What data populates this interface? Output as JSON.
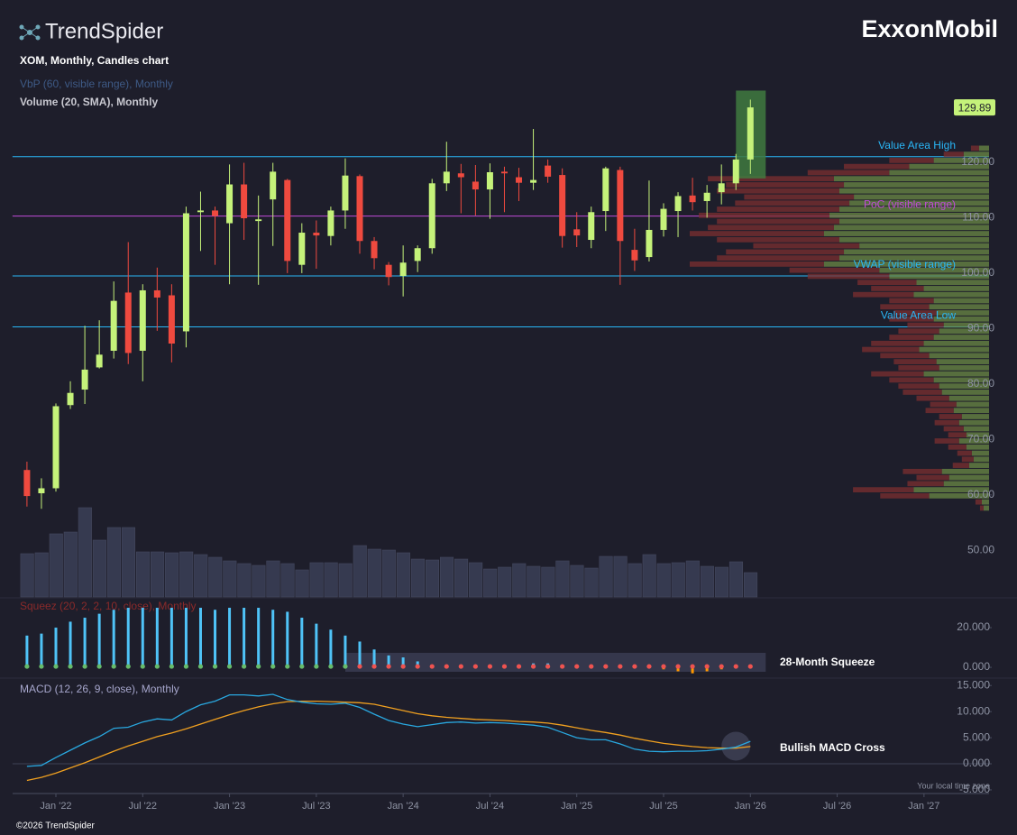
{
  "header": {
    "brand": "TrendSpider",
    "company": "ExxonMobil",
    "footer": "©2026 TrendSpider",
    "timezone": "Your local time zone"
  },
  "chart_data": {
    "type": "candlestick",
    "title": "XOM, Monthly, Candles chart",
    "x": [
      "2021-11",
      "2021-12",
      "2022-01",
      "2022-02",
      "2022-03",
      "2022-04",
      "2022-05",
      "2022-06",
      "2022-07",
      "2022-08",
      "2022-09",
      "2022-10",
      "2022-11",
      "2022-12",
      "2023-01",
      "2023-02",
      "2023-03",
      "2023-04",
      "2023-05",
      "2023-06",
      "2023-07",
      "2023-08",
      "2023-09",
      "2023-10",
      "2023-11",
      "2023-12",
      "2024-01",
      "2024-02",
      "2024-03",
      "2024-04",
      "2024-05",
      "2024-06",
      "2024-07",
      "2024-08",
      "2024-09",
      "2024-10",
      "2024-11",
      "2024-12",
      "2025-01",
      "2025-02",
      "2025-03",
      "2025-04",
      "2025-05",
      "2025-06",
      "2025-07",
      "2025-08",
      "2025-09",
      "2025-10",
      "2025-11",
      "2025-12",
      "2026-01"
    ],
    "xlim": [
      "2021-10",
      "2027-05"
    ],
    "xticks": [
      {
        "value": "2022-01",
        "label": "Jan '22"
      },
      {
        "value": "2022-07",
        "label": "Jul '22"
      },
      {
        "value": "2023-01",
        "label": "Jan '23"
      },
      {
        "value": "2023-07",
        "label": "Jul '23"
      },
      {
        "value": "2024-01",
        "label": "Jan '24"
      },
      {
        "value": "2024-07",
        "label": "Jul '24"
      },
      {
        "value": "2025-01",
        "label": "Jan '25"
      },
      {
        "value": "2025-07",
        "label": "Jul '25"
      },
      {
        "value": "2026-01",
        "label": "Jan '26"
      },
      {
        "value": "2026-07",
        "label": "Jul '26"
      },
      {
        "value": "2027-01",
        "label": "Jan '27"
      }
    ],
    "open": [
      64.5,
      60.3,
      61.2,
      76.2,
      79,
      83,
      86,
      96.5,
      86,
      96.9,
      96,
      89.5,
      111,
      111.3,
      109,
      116,
      109.4,
      113.3,
      116.8,
      101.5,
      107.3,
      106.7,
      111.3,
      117.5,
      105.8,
      101.5,
      99.5,
      102.2,
      104.5,
      116.2,
      118,
      116.5,
      115.1,
      118.3,
      117.3,
      116.3,
      119.4,
      117.7,
      107.9,
      106,
      111.2,
      118.6,
      104.2,
      102.9,
      107.8,
      111.2,
      114,
      113,
      114.6,
      116.2,
      120.5
    ],
    "high": [
      66,
      63,
      76.5,
      80.5,
      90.5,
      91.5,
      98.5,
      105.6,
      98,
      101,
      98,
      112,
      114.7,
      112,
      119.6,
      119.9,
      114,
      119.9,
      117,
      109,
      109.5,
      112,
      120.7,
      117.8,
      106.5,
      102,
      105,
      105,
      117,
      123.7,
      119.7,
      119.5,
      119.8,
      119.2,
      119,
      126,
      120.5,
      118.9,
      111,
      112,
      119.2,
      119.2,
      108,
      116.7,
      112.6,
      114.6,
      117.2,
      115.9,
      119.6,
      121.5,
      131.3
    ],
    "low": [
      57.9,
      57.5,
      60.6,
      75.5,
      76.4,
      82.8,
      84.6,
      83.6,
      80.5,
      89.6,
      83.9,
      86.6,
      104,
      101.5,
      98,
      106,
      97.9,
      104.9,
      100,
      100,
      100.8,
      105,
      108,
      103.5,
      100.7,
      97.8,
      95.8,
      100.2,
      103.5,
      114.8,
      110.8,
      110.4,
      109.8,
      111,
      113,
      115,
      116.3,
      104.6,
      104.7,
      104.5,
      107.6,
      97.9,
      100.4,
      102.1,
      106.6,
      106.5,
      111.3,
      110,
      112.4,
      115,
      117.9
    ],
    "close": [
      59.8,
      61.2,
      76,
      78.4,
      82.6,
      85.3,
      95,
      85.6,
      96.9,
      95.6,
      87.3,
      110.8,
      111.3,
      110.3,
      116,
      109.9,
      109.7,
      118.3,
      102.2,
      107.3,
      106.8,
      111.3,
      117.6,
      105.8,
      102.7,
      99.3,
      101.9,
      104.5,
      116.2,
      118.3,
      117.3,
      115.1,
      118.2,
      118,
      116.3,
      116.8,
      117.4,
      106.7,
      106.8,
      111,
      118.9,
      105.8,
      102.3,
      107.8,
      111.6,
      113.9,
      112.8,
      114.5,
      116.2,
      120.5,
      129.89
    ],
    "up_color": "#c5f27a",
    "down_color": "#ef4a3f",
    "ylim": [
      41.6,
      133
    ],
    "yticks": [
      {
        "value": 120,
        "label": "120.00"
      },
      {
        "value": 110,
        "label": "110.00"
      },
      {
        "value": 100,
        "label": "100.00"
      },
      {
        "value": 90,
        "label": "90.00"
      },
      {
        "value": 80,
        "label": "80.00"
      },
      {
        "value": 70,
        "label": "70.00"
      },
      {
        "value": 60,
        "label": "60.00"
      },
      {
        "value": 50,
        "label": "50.00"
      }
    ],
    "levels": [
      {
        "name": "Value Area High",
        "value": 121,
        "color": "#29b6f6"
      },
      {
        "name": "PoC (visible range)",
        "value": 110.3,
        "color": "#c04bd8"
      },
      {
        "name": "VWAP (visible range)",
        "value": 99.5,
        "color": "#29b6f6"
      },
      {
        "name": "Value Area Low",
        "value": 90.3,
        "color": "#29b6f6"
      }
    ],
    "volume_profile": {
      "title": "VbP (60, visible range), Monthly",
      "bins": [
        57,
        58.1,
        59.2,
        60.3,
        61.4,
        62.5,
        63.6,
        64.7,
        65.8,
        66.9,
        68,
        69.1,
        70.2,
        71.3,
        72.4,
        73.5,
        74.6,
        75.7,
        76.8,
        77.9,
        79,
        80.1,
        81.2,
        82.3,
        83.4,
        84.5,
        85.6,
        86.7,
        87.8,
        88.9,
        90,
        91.1,
        92.2,
        93.3,
        94.4,
        95.5,
        96.6,
        97.7,
        98.8,
        99.9,
        101,
        102.1,
        103.2,
        104.3,
        105.4,
        106.5,
        107.6,
        108.7,
        109.8,
        110.9,
        112,
        113.1,
        114.2,
        115.3,
        116.4,
        117.5,
        118.6,
        119.7,
        120.8,
        121.9,
        123
      ],
      "up": [
        6,
        8,
        66,
        83,
        50,
        44,
        52,
        22,
        17,
        19,
        25,
        33,
        25,
        28,
        33,
        30,
        39,
        36,
        44,
        52,
        55,
        61,
        72,
        55,
        58,
        66,
        77,
        72,
        61,
        55,
        50,
        61,
        58,
        66,
        61,
        83,
        72,
        80,
        110,
        121,
        182,
        165,
        160,
        143,
        165,
        182,
        171,
        165,
        176,
        165,
        154,
        149,
        165,
        160,
        171,
        110,
        88,
        61,
        28,
        11
      ],
      "down": [
        4,
        7,
        54,
        67,
        40,
        36,
        43,
        18,
        13,
        16,
        20,
        27,
        20,
        22,
        27,
        25,
        31,
        29,
        36,
        43,
        45,
        49,
        58,
        45,
        47,
        54,
        63,
        58,
        49,
        45,
        40,
        49,
        47,
        54,
        49,
        67,
        58,
        65,
        90,
        99,
        148,
        135,
        130,
        117,
        135,
        148,
        139,
        135,
        144,
        135,
        126,
        121,
        135,
        130,
        139,
        90,
        72,
        49,
        22,
        9
      ],
      "up_color": "#6b8a45",
      "down_color": "#7c2f30"
    },
    "volume": {
      "title": "Volume (20, SMA), Monthly",
      "values": [
        480,
        490,
        700,
        720,
        990,
        630,
        770,
        770,
        500,
        500,
        490,
        500,
        470,
        440,
        400,
        370,
        350,
        400,
        370,
        300,
        380,
        380,
        370,
        570,
        530,
        520,
        490,
        420,
        410,
        440,
        420,
        380,
        310,
        330,
        370,
        340,
        330,
        400,
        350,
        320,
        450,
        450,
        370,
        470,
        370,
        380,
        400,
        340,
        330,
        390,
        270
      ],
      "color": "#363a50"
    },
    "squeeze": {
      "title": "Squeez (20, 2, 2, 10, close), Monthly",
      "values": [
        16,
        17,
        20,
        23,
        25,
        27,
        29,
        30,
        30,
        30,
        30,
        30,
        30,
        29,
        30,
        30,
        30,
        29,
        28,
        25,
        22,
        19,
        16,
        13,
        9,
        6,
        5,
        3,
        1,
        1,
        1,
        1,
        1,
        1,
        1,
        2,
        2,
        1,
        1,
        1,
        1,
        1,
        1,
        1,
        -1,
        -2,
        -3,
        -2,
        -1,
        0.5,
        1
      ],
      "squeeze_on": [
        false,
        false,
        false,
        false,
        false,
        false,
        false,
        false,
        false,
        false,
        false,
        false,
        false,
        false,
        false,
        false,
        false,
        false,
        false,
        false,
        false,
        false,
        false,
        true,
        true,
        true,
        true,
        true,
        true,
        true,
        true,
        true,
        true,
        true,
        true,
        true,
        true,
        true,
        true,
        true,
        true,
        true,
        true,
        true,
        true,
        true,
        true,
        true,
        true,
        true,
        true
      ],
      "ylim": [
        -3.6,
        34.1
      ],
      "yticks": [
        {
          "value": 20,
          "label": "20.000"
        },
        {
          "value": 0,
          "label": "0.000"
        }
      ],
      "annotation": "28-Month Squeeze",
      "positive_color": "#4fc3f7",
      "negative_color": "#ff9800",
      "off_color": "#66bb6a",
      "on_color": "#ef5350"
    },
    "macd": {
      "title": "MACD (12, 26, 9, close), Monthly",
      "macd": [
        -0.5,
        -0.3,
        1.2,
        2.6,
        4.0,
        5.2,
        6.8,
        7.0,
        8.0,
        8.6,
        8.4,
        10.0,
        11.3,
        12.0,
        13.2,
        13.2,
        13.0,
        13.3,
        12.3,
        11.8,
        11.5,
        11.4,
        11.6,
        10.8,
        9.5,
        8.3,
        7.6,
        7.1,
        7.5,
        7.9,
        8.0,
        7.8,
        7.9,
        7.8,
        7.6,
        7.4,
        7.0,
        6.0,
        5.0,
        4.6,
        4.6,
        3.8,
        2.8,
        2.4,
        2.3,
        2.4,
        2.4,
        2.5,
        2.8,
        3.2,
        4.3
      ],
      "signal": [
        -3.2,
        -2.6,
        -1.8,
        -0.8,
        0.2,
        1.3,
        2.4,
        3.4,
        4.3,
        5.2,
        5.9,
        6.7,
        7.6,
        8.5,
        9.4,
        10.2,
        10.9,
        11.5,
        11.9,
        12.0,
        12.0,
        11.9,
        11.8,
        11.7,
        11.4,
        10.8,
        10.2,
        9.6,
        9.2,
        8.9,
        8.7,
        8.5,
        8.4,
        8.3,
        8.1,
        8.0,
        7.8,
        7.4,
        6.9,
        6.4,
        6.0,
        5.5,
        4.9,
        4.4,
        3.9,
        3.6,
        3.3,
        3.1,
        3.0,
        3.0,
        3.3
      ],
      "macd_color": "#29a8e0",
      "signal_color": "#f0a020",
      "ylim": [
        -5.7,
        15.9
      ],
      "yticks": [
        {
          "value": 15,
          "label": "15.000"
        },
        {
          "value": 10,
          "label": "10.000"
        },
        {
          "value": 5,
          "label": "5.000"
        },
        {
          "value": 0,
          "label": "0.000"
        },
        {
          "value": -5,
          "label": "-5.000"
        }
      ],
      "annotation": "Bullish MACD Cross"
    }
  }
}
